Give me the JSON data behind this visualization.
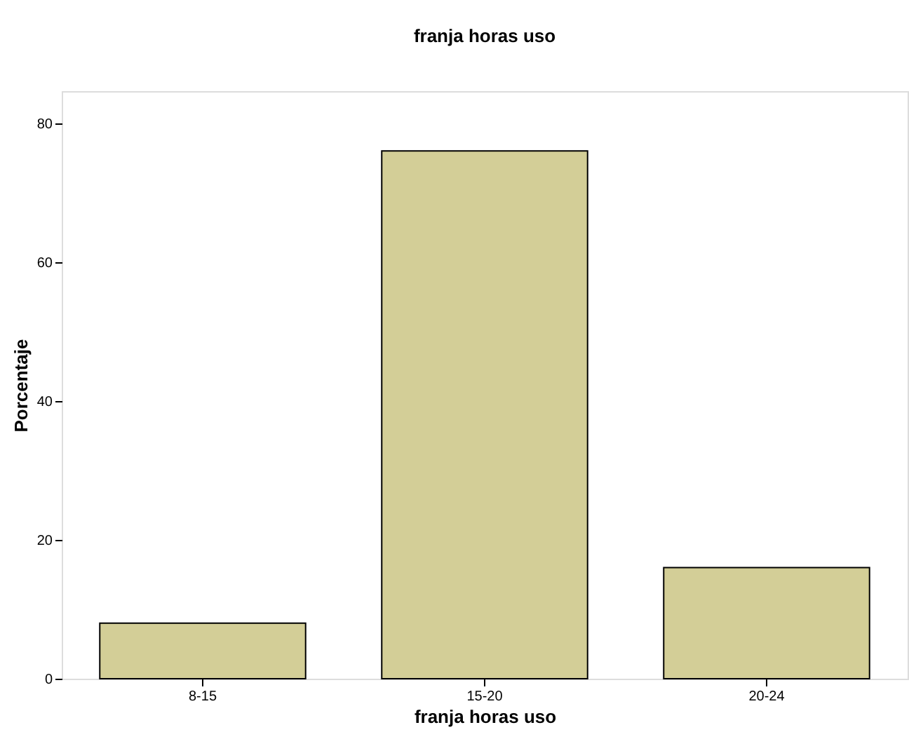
{
  "chart_data": {
    "type": "bar",
    "title": "franja horas uso",
    "xlabel": "franja horas uso",
    "ylabel": "Porcentaje",
    "categories": [
      "8-15",
      "15-20",
      "20-24"
    ],
    "values": [
      8,
      76,
      16
    ],
    "color": "#d3ce97",
    "ylim": [
      0,
      84.6
    ],
    "yticks": [
      0,
      20,
      40,
      60,
      80
    ],
    "grid": false,
    "legend": false
  }
}
